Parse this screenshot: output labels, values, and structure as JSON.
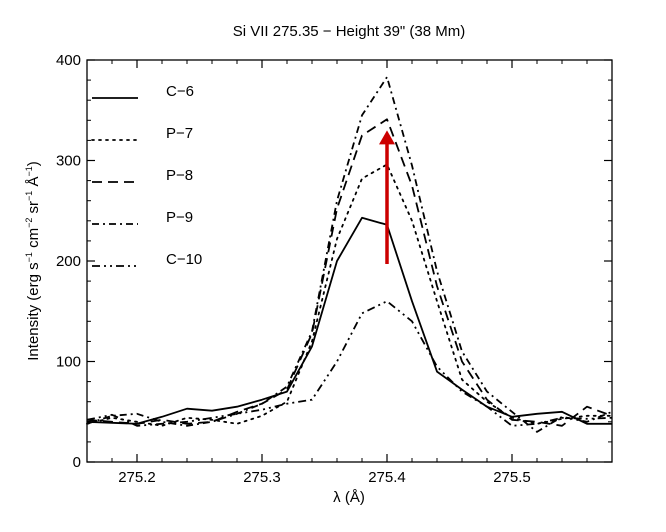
{
  "chart_data": {
    "type": "line",
    "title": "Si VII 275.35 − Height 39\" (38 Mm)",
    "xlabel": "λ (Å)",
    "ylabel_text": "Intensity (erg s",
    "ylabel_sup1": "−1",
    "ylabel_text2": " cm",
    "ylabel_sup2": "−2",
    "ylabel_text3": " sr",
    "ylabel_sup3": "−1",
    "ylabel_text4": " Å",
    "ylabel_sup4": "−1",
    "ylabel_text5": ")",
    "xlim": [
      275.16,
      275.58
    ],
    "ylim": [
      0,
      400
    ],
    "xticks": [
      {
        "value": 275.2,
        "label": "275.2"
      },
      {
        "value": 275.3,
        "label": "275.3"
      },
      {
        "value": 275.4,
        "label": "275.4"
      },
      {
        "value": 275.5,
        "label": "275.5"
      }
    ],
    "yticks": [
      {
        "value": 0,
        "label": "0"
      },
      {
        "value": 100,
        "label": "100"
      },
      {
        "value": 200,
        "label": "200"
      },
      {
        "value": 300,
        "label": "300"
      },
      {
        "value": 400,
        "label": "400"
      }
    ],
    "x": [
      275.16,
      275.18,
      275.2,
      275.22,
      275.24,
      275.26,
      275.28,
      275.3,
      275.32,
      275.34,
      275.36,
      275.38,
      275.4,
      275.42,
      275.44,
      275.46,
      275.48,
      275.5,
      275.52,
      275.54,
      275.56,
      275.58
    ],
    "series": [
      {
        "name": "C−6",
        "dash": "",
        "values": [
          40,
          39,
          38,
          45,
          53,
          51,
          55,
          62,
          70,
          115,
          200,
          243,
          236,
          160,
          90,
          72,
          55,
          45,
          48,
          50,
          38,
          38
        ]
      },
      {
        "name": "P−7",
        "dash": "2 5",
        "values": [
          38,
          44,
          40,
          36,
          44,
          42,
          38,
          46,
          60,
          120,
          222,
          282,
          296,
          240,
          160,
          82,
          60,
          44,
          38,
          43,
          46,
          46
        ]
      },
      {
        "name": "P−8",
        "dash": "10 6",
        "values": [
          42,
          40,
          38,
          42,
          38,
          40,
          50,
          58,
          72,
          128,
          252,
          325,
          341,
          275,
          175,
          100,
          62,
          42,
          40,
          36,
          55,
          46
        ]
      },
      {
        "name": "P−9",
        "dash": "7 4 2 4",
        "values": [
          38,
          46,
          48,
          40,
          36,
          40,
          48,
          58,
          75,
          130,
          260,
          345,
          383,
          295,
          190,
          110,
          70,
          50,
          30,
          45,
          40,
          50
        ]
      },
      {
        "name": "C−10",
        "dash": "8 4 2 4 2 4",
        "values": [
          42,
          47,
          36,
          38,
          40,
          44,
          48,
          52,
          58,
          62,
          100,
          148,
          160,
          140,
          95,
          70,
          55,
          36,
          38,
          44,
          43,
          44
        ]
      }
    ],
    "arrow": {
      "x": 275.4,
      "y_from": 197,
      "y_to": 330,
      "color": "#cc0000"
    }
  }
}
